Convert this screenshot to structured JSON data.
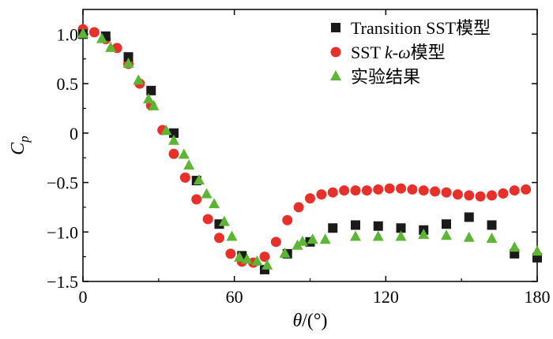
{
  "chart_data": {
    "type": "scatter",
    "xlabel_var": "θ",
    "xlabel_unit": "/(°)",
    "ylabel_var": "C",
    "ylabel_sub": "p",
    "xlim": [
      0,
      180
    ],
    "ylim": [
      -1.5,
      1.25
    ],
    "x_ticks": [
      0,
      60,
      120,
      180
    ],
    "x_tick_labels": [
      "0",
      "60",
      "120",
      "180"
    ],
    "y_ticks": [
      1.0,
      0.5,
      0,
      -0.5,
      -1.0,
      -1.5
    ],
    "y_tick_labels": [
      "1.0",
      "0.5",
      "0",
      "−0.5",
      "−1.0",
      "−1.5"
    ],
    "legend_position": "top-right",
    "series": [
      {
        "name_parts": [
          "Transition SST模型"
        ],
        "marker": "square",
        "color": "#1a1a1a",
        "points": [
          [
            0,
            1.0
          ],
          [
            9,
            0.98
          ],
          [
            18,
            0.77
          ],
          [
            27,
            0.43
          ],
          [
            36,
            0.0
          ],
          [
            45,
            -0.48
          ],
          [
            54,
            -0.92
          ],
          [
            63,
            -1.24
          ],
          [
            72,
            -1.38
          ],
          [
            81,
            -1.22
          ],
          [
            90,
            -1.1
          ],
          [
            99,
            -0.96
          ],
          [
            108,
            -0.93
          ],
          [
            117,
            -0.94
          ],
          [
            126,
            -0.96
          ],
          [
            135,
            -0.98
          ],
          [
            144,
            -0.92
          ],
          [
            153,
            -0.85
          ],
          [
            162,
            -0.93
          ],
          [
            171,
            -1.22
          ],
          [
            180,
            -1.26
          ]
        ]
      },
      {
        "name_parts": [
          "SST ",
          "k-ω",
          "模型"
        ],
        "marker": "circle",
        "color": "#e8302a",
        "points": [
          [
            0,
            1.05
          ],
          [
            4.5,
            1.02
          ],
          [
            9,
            0.95
          ],
          [
            13.5,
            0.86
          ],
          [
            18,
            0.7
          ],
          [
            22.5,
            0.5
          ],
          [
            27,
            0.28
          ],
          [
            31.5,
            0.03
          ],
          [
            36,
            -0.21
          ],
          [
            40.5,
            -0.45
          ],
          [
            45,
            -0.67
          ],
          [
            49.5,
            -0.87
          ],
          [
            54,
            -1.06
          ],
          [
            58.5,
            -1.22
          ],
          [
            63,
            -1.3
          ],
          [
            67.5,
            -1.31
          ],
          [
            72,
            -1.25
          ],
          [
            76.5,
            -1.1
          ],
          [
            81,
            -0.88
          ],
          [
            85.5,
            -0.75
          ],
          [
            90,
            -0.66
          ],
          [
            94.5,
            -0.62
          ],
          [
            99,
            -0.6
          ],
          [
            103.5,
            -0.58
          ],
          [
            108,
            -0.58
          ],
          [
            112.5,
            -0.58
          ],
          [
            117,
            -0.57
          ],
          [
            121.5,
            -0.56
          ],
          [
            126,
            -0.56
          ],
          [
            130.5,
            -0.57
          ],
          [
            135,
            -0.58
          ],
          [
            139.5,
            -0.59
          ],
          [
            144,
            -0.6
          ],
          [
            148.5,
            -0.62
          ],
          [
            153,
            -0.63
          ],
          [
            157.5,
            -0.64
          ],
          [
            162,
            -0.63
          ],
          [
            166.5,
            -0.61
          ],
          [
            171,
            -0.58
          ],
          [
            175.5,
            -0.57
          ]
        ]
      },
      {
        "name_parts": [
          "实验结果"
        ],
        "marker": "triangle",
        "color": "#5db534",
        "points": [
          [
            0,
            1.0
          ],
          [
            7.5,
            0.95
          ],
          [
            11,
            0.86
          ],
          [
            18,
            0.7
          ],
          [
            22,
            0.53
          ],
          [
            26,
            0.34
          ],
          [
            28,
            0.27
          ],
          [
            33,
            0.02
          ],
          [
            36,
            -0.08
          ],
          [
            40,
            -0.22
          ],
          [
            42,
            -0.33
          ],
          [
            46,
            -0.48
          ],
          [
            49,
            -0.62
          ],
          [
            52,
            -0.72
          ],
          [
            56,
            -0.9
          ],
          [
            59,
            -1.05
          ],
          [
            62,
            -1.26
          ],
          [
            65,
            -1.28
          ],
          [
            69,
            -1.3
          ],
          [
            73,
            -1.34
          ],
          [
            80,
            -1.22
          ],
          [
            85,
            -1.14
          ],
          [
            87,
            -1.1
          ],
          [
            91,
            -1.08
          ],
          [
            96,
            -1.08
          ],
          [
            108,
            -1.05
          ],
          [
            117,
            -1.05
          ],
          [
            126,
            -1.05
          ],
          [
            135,
            -1.03
          ],
          [
            144,
            -1.04
          ],
          [
            153,
            -1.06
          ],
          [
            162,
            -1.07
          ],
          [
            171,
            -1.16
          ],
          [
            180,
            -1.2
          ]
        ]
      }
    ]
  }
}
